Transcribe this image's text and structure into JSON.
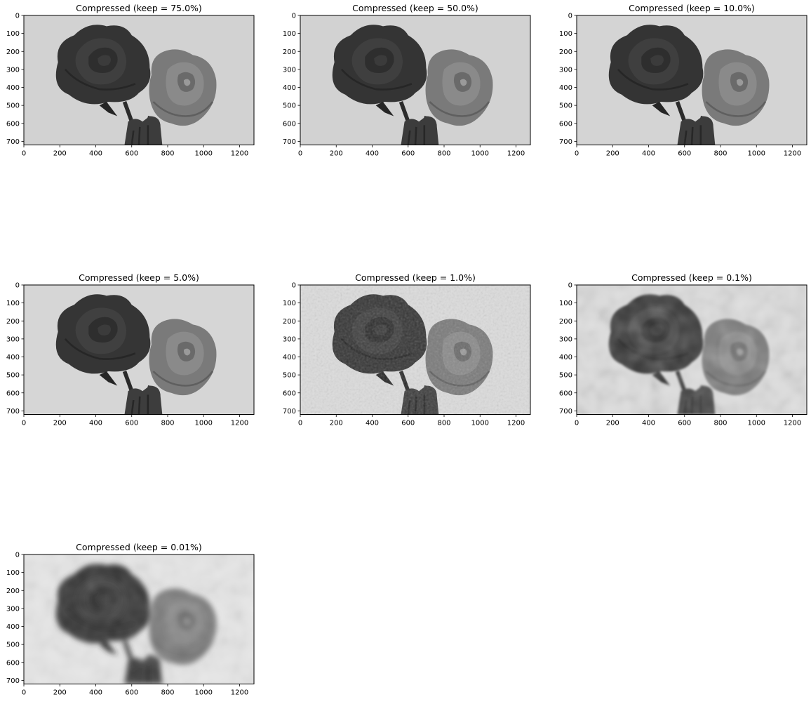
{
  "figure": {
    "background": "#ffffff",
    "colormap": "gray",
    "panels": [
      {
        "title": "Compressed (keep = 75.0%)",
        "blur": 0,
        "noise": 0,
        "background_gray": "#d2d2d2"
      },
      {
        "title": "Compressed (keep = 50.0%)",
        "blur": 0,
        "noise": 0,
        "background_gray": "#d2d2d2"
      },
      {
        "title": "Compressed (keep = 10.0%)",
        "blur": 0,
        "noise": 0,
        "background_gray": "#d4d4d4"
      },
      {
        "title": "Compressed (keep = 5.0%)",
        "blur": 0.3,
        "noise": 0,
        "background_gray": "#d6d6d6"
      },
      {
        "title": "Compressed (keep = 1.0%)",
        "blur": 0.6,
        "noise": 0.6,
        "background_gray": "#dcdcdc"
      },
      {
        "title": "Compressed (keep = 0.1%)",
        "blur": 6,
        "noise": 0.8,
        "background_gray": "#dedede"
      },
      {
        "title": "Compressed (keep = 0.01%)",
        "blur": 15,
        "noise": 0.5,
        "background_gray": "#e6e6e6"
      }
    ],
    "x_ticks": [
      "0",
      "200",
      "400",
      "600",
      "800",
      "1000",
      "1200"
    ],
    "y_ticks": [
      "0",
      "100",
      "200",
      "300",
      "400",
      "500",
      "600",
      "700"
    ]
  }
}
